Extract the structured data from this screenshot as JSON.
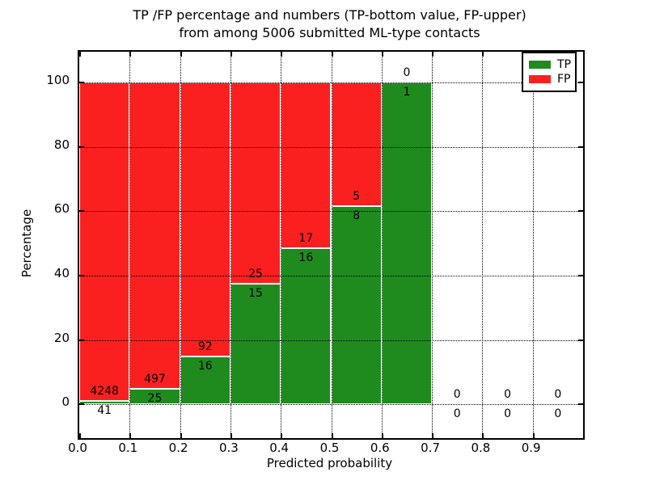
{
  "figure": {
    "background": "#ffffff"
  },
  "chart_data": {
    "type": "bar",
    "stacked": true,
    "title_lines": [
      "TP /FP percentage and numbers (TP-bottom value, FP-upper)",
      "from among 5006 submitted ML-type contacts"
    ],
    "total_contacts": 5006,
    "xlabel": "Predicted probability",
    "ylabel": "Percentage",
    "xlim": [
      0.0,
      1.0
    ],
    "ylim": [
      -10.5,
      109.5
    ],
    "xticks": [
      0.0,
      0.1,
      0.2,
      0.3,
      0.4,
      0.5,
      0.6,
      0.7,
      0.8,
      0.9
    ],
    "yticks": [
      0,
      20,
      40,
      60,
      80,
      100
    ],
    "grid": true,
    "grid_style": "dotted",
    "grid_color": "#000000",
    "bar_edge_color": "#ffffff",
    "colors": {
      "tp": "#1f8b1f",
      "fp": "#fb2020"
    },
    "legend": {
      "position": "upper right",
      "entries": [
        {
          "label": "TP",
          "color": "#1f8b1f"
        },
        {
          "label": "FP",
          "color": "#fb2020"
        }
      ]
    },
    "bins": [
      {
        "range": "0.0-0.1",
        "x_start": 0.0,
        "x_end": 0.1,
        "tp": 41,
        "fp": 4248
      },
      {
        "range": "0.1-0.2",
        "x_start": 0.1,
        "x_end": 0.2,
        "tp": 25,
        "fp": 497
      },
      {
        "range": "0.2-0.3",
        "x_start": 0.2,
        "x_end": 0.3,
        "tp": 16,
        "fp": 92
      },
      {
        "range": "0.3-0.4",
        "x_start": 0.3,
        "x_end": 0.4,
        "tp": 15,
        "fp": 25
      },
      {
        "range": "0.4-0.5",
        "x_start": 0.4,
        "x_end": 0.5,
        "tp": 16,
        "fp": 17
      },
      {
        "range": "0.5-0.6",
        "x_start": 0.5,
        "x_end": 0.6,
        "tp": 8,
        "fp": 5
      },
      {
        "range": "0.6-0.7",
        "x_start": 0.6,
        "x_end": 0.7,
        "tp": 1,
        "fp": 0
      },
      {
        "range": "0.7-0.8",
        "x_start": 0.7,
        "x_end": 0.8,
        "tp": 0,
        "fp": 0
      },
      {
        "range": "0.8-0.9",
        "x_start": 0.8,
        "x_end": 0.9,
        "tp": 0,
        "fp": 0
      },
      {
        "range": "0.9-1.0",
        "x_start": 0.9,
        "x_end": 1.0,
        "tp": 0,
        "fp": 0
      }
    ]
  }
}
